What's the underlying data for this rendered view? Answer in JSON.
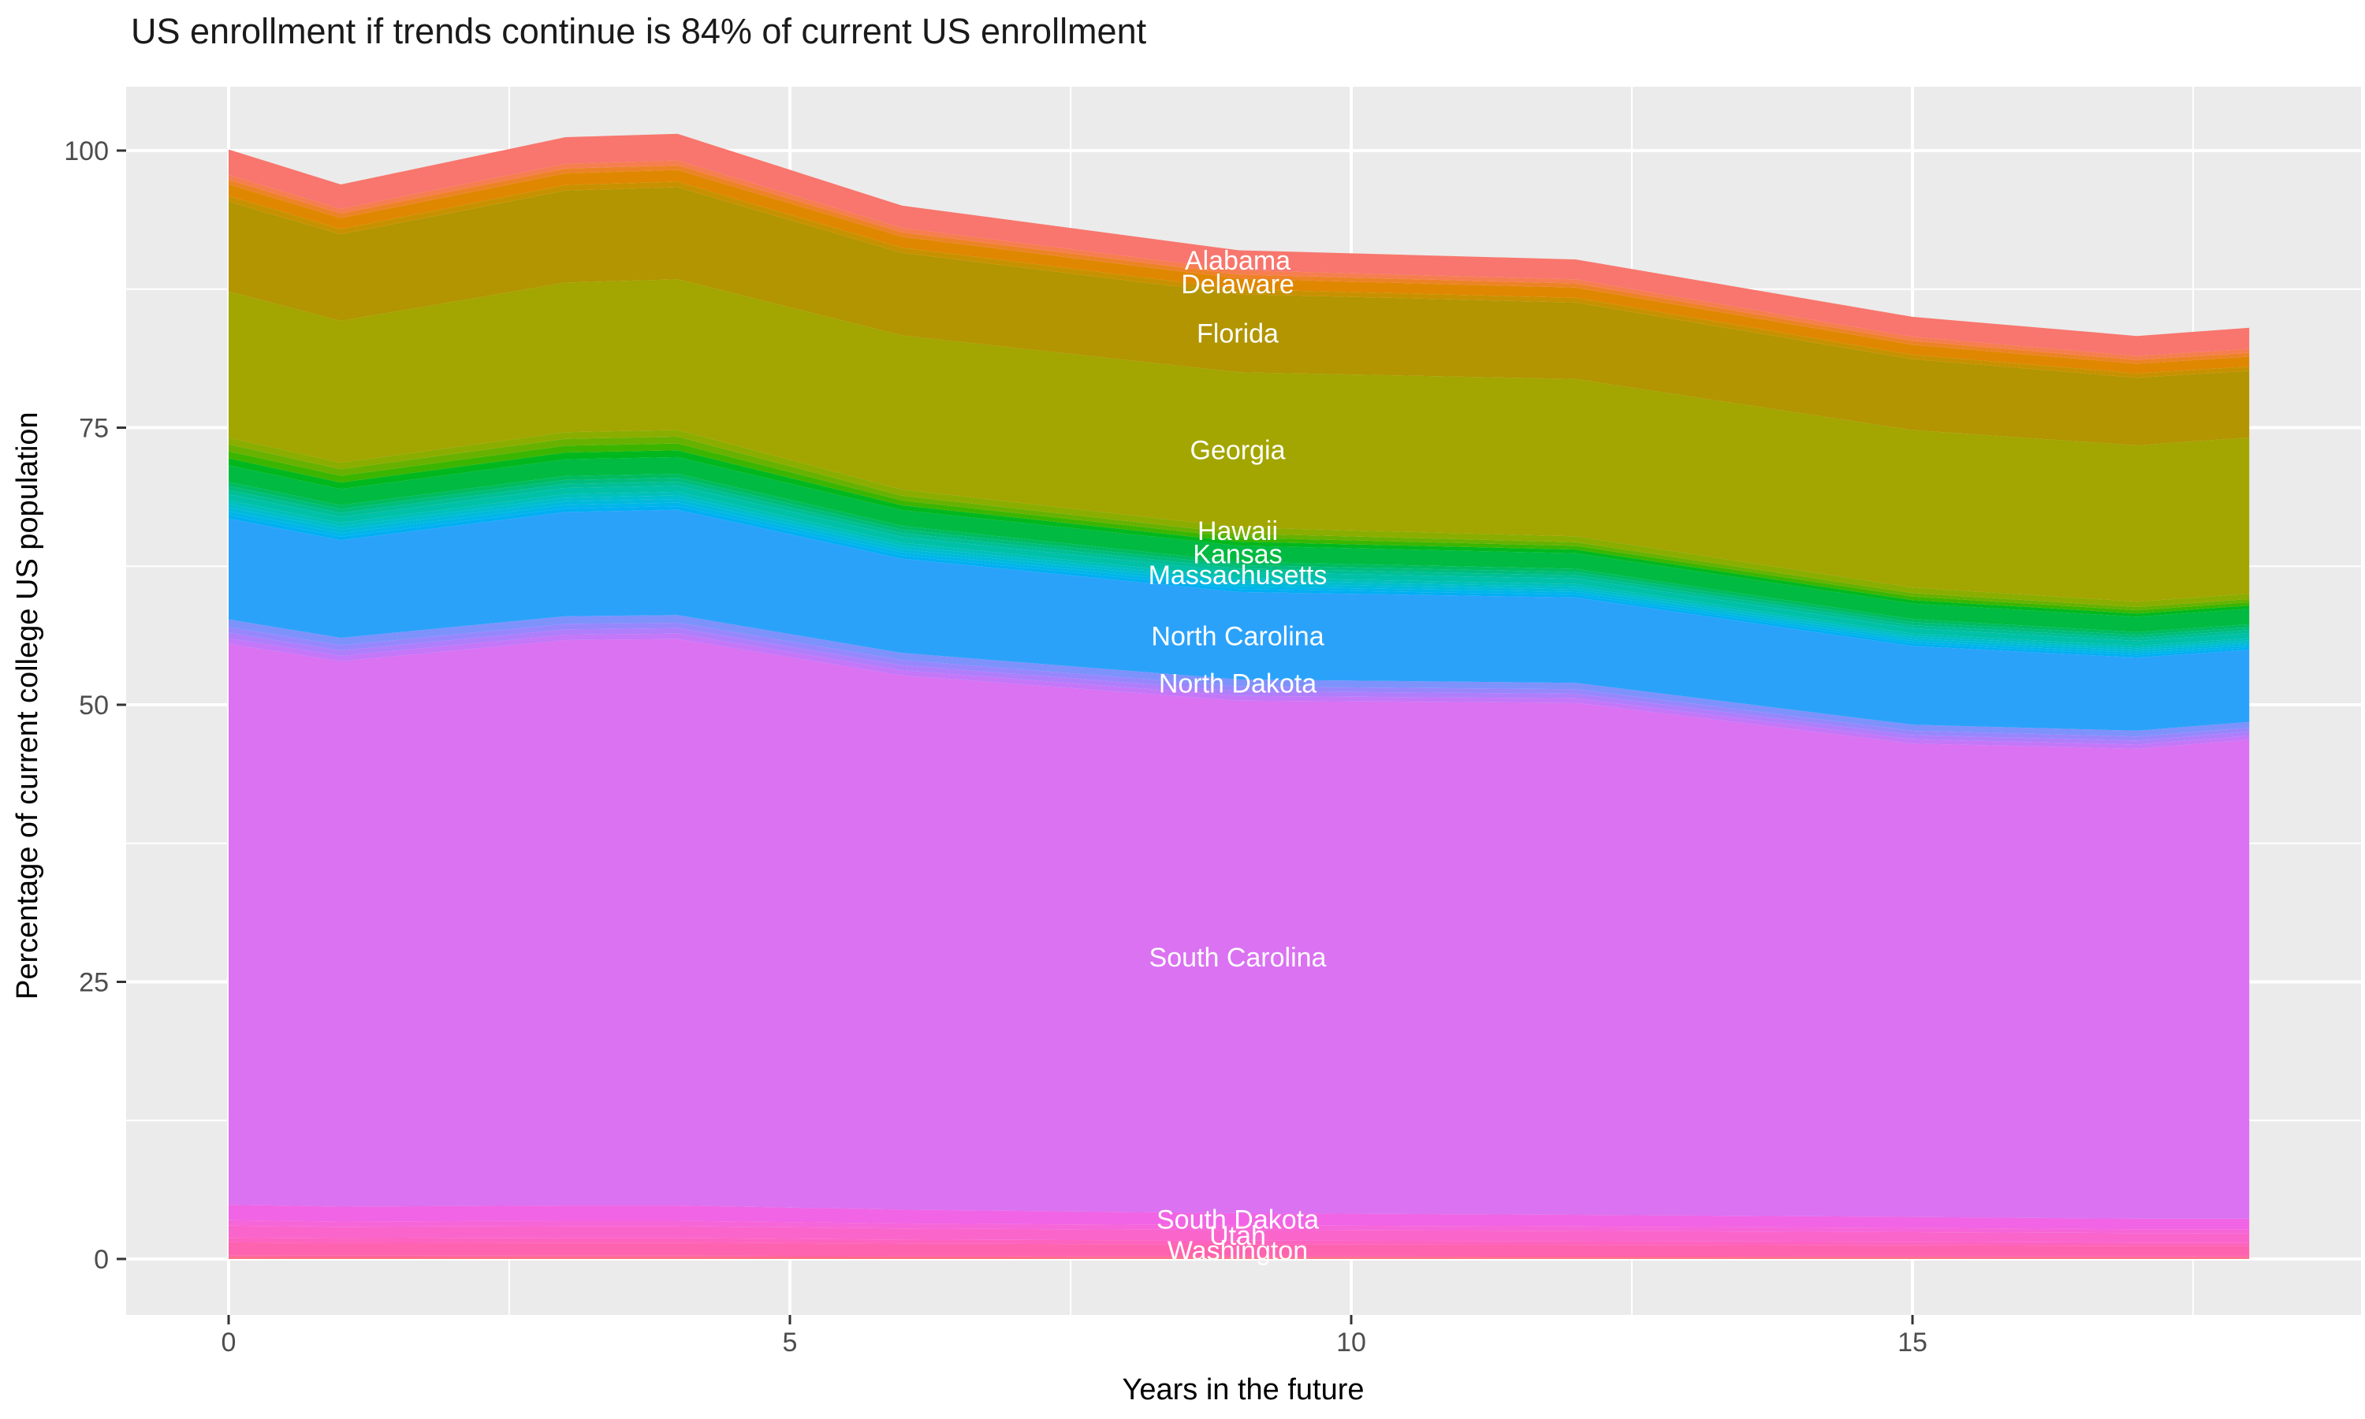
{
  "accent_colors": {
    "panel_background": "#EBEBEB",
    "gridline": "#FFFFFF",
    "tick_mark": "#333333",
    "tick_label": "#4D4D4D",
    "band_label_text": "#FFFFFF",
    "title_text": "#1A1A1A"
  },
  "chart_data": {
    "type": "area",
    "stacked": true,
    "title": "US enrollment if trends continue is 84% of current US enrollment",
    "xlabel": "Years in the future",
    "ylabel": "Percentage of current college US population",
    "xlim": [
      0,
      18
    ],
    "ylim": [
      0,
      100
    ],
    "grid": "on",
    "legend_position": "none",
    "x_ticks": [
      {
        "v": 0,
        "label": "0"
      },
      {
        "v": 5,
        "label": "5"
      },
      {
        "v": 10,
        "label": "10"
      },
      {
        "v": 15,
        "label": "15"
      }
    ],
    "y_ticks": [
      {
        "v": 0,
        "label": "0"
      },
      {
        "v": 25,
        "label": "25"
      },
      {
        "v": 50,
        "label": "50"
      },
      {
        "v": 75,
        "label": "75"
      },
      {
        "v": 100,
        "label": "100"
      }
    ],
    "x_minor_ticks": [
      2.5,
      7.5,
      12.5,
      17.5
    ],
    "y_minor_ticks": [
      12.5,
      37.5,
      62.5,
      87.5
    ],
    "x_samples": [
      0,
      1,
      3,
      4,
      6,
      9,
      12,
      15,
      17,
      18
    ],
    "total_percent_by_sample": [
      100.1,
      96.9,
      101.2,
      101.5,
      95.0,
      91.0,
      90.2,
      85.0,
      83.3,
      84.0
    ],
    "stack_order": "top-to-bottom",
    "series": [
      {
        "name": "Alabama",
        "labeled": true,
        "color": "#F8766D",
        "values": [
          2.3,
          2.2,
          2.4,
          2.4,
          2.0,
          1.8,
          1.8,
          1.8,
          1.8,
          1.9
        ]
      },
      {
        "name": "unlabeled-band-1",
        "labeled": false,
        "colors": [
          "#F67E50",
          "#ED8327"
        ],
        "values": [
          0.85,
          0.82,
          0.86,
          0.86,
          0.8,
          0.76,
          0.74,
          0.72,
          0.7,
          0.7
        ]
      },
      {
        "name": "Delaware",
        "labeled": true,
        "color": "#E08700",
        "values": [
          1.05,
          1.0,
          1.06,
          1.06,
          1.0,
          0.95,
          0.93,
          0.9,
          0.88,
          0.9
        ]
      },
      {
        "name": "unlabeled-band-2",
        "labeled": false,
        "colors": [
          "#C89100"
        ],
        "values": [
          0.5,
          0.48,
          0.5,
          0.5,
          0.46,
          0.44,
          0.42,
          0.4,
          0.39,
          0.39
        ]
      },
      {
        "name": "Florida",
        "labeled": true,
        "color": "#B29500",
        "values": [
          8.1,
          7.8,
          8.3,
          8.3,
          7.45,
          7.05,
          6.9,
          6.4,
          6.1,
          6.0
        ]
      },
      {
        "name": "Georgia",
        "labeled": true,
        "color": "#A3A500",
        "values": [
          13.2,
          12.8,
          13.5,
          13.6,
          13.9,
          14.0,
          14.2,
          14.2,
          14.1,
          14.1
        ]
      },
      {
        "name": "Hawaii",
        "labeled": true,
        "color": "#8BAD00",
        "values": [
          0.6,
          0.58,
          0.6,
          0.6,
          0.56,
          0.55,
          0.52,
          0.5,
          0.48,
          0.48
        ]
      },
      {
        "name": "unlabeled-band-3",
        "labeled": false,
        "colors": [
          "#68B100",
          "#3CB500",
          "#00B81E"
        ],
        "values": [
          1.9,
          1.8,
          1.85,
          1.85,
          1.3,
          1.1,
          1.0,
          0.95,
          0.88,
          0.88
        ]
      },
      {
        "name": "Kansas",
        "labeled": true,
        "color": "#00BA42",
        "values": [
          1.5,
          1.45,
          1.5,
          1.5,
          1.42,
          1.45,
          1.4,
          1.4,
          1.38,
          1.4
        ]
      },
      {
        "name": "unlabeled-band-4",
        "labeled": false,
        "colors": [
          "#00BC61",
          "#00BD7E",
          "#00BF96"
        ],
        "values": [
          1.1,
          1.06,
          1.08,
          1.08,
          1.0,
          0.92,
          0.88,
          0.84,
          0.8,
          0.8
        ]
      },
      {
        "name": "Massachusetts",
        "labeled": true,
        "color": "#00C0A8",
        "values": [
          0.55,
          0.53,
          0.55,
          0.55,
          0.52,
          0.5,
          0.49,
          0.47,
          0.45,
          0.45
        ]
      },
      {
        "name": "unlabeled-band-5",
        "labeled": false,
        "colors": [
          "#00C0BB",
          "#00BECC",
          "#00BADB",
          "#00B5E9",
          "#00AFF3"
        ],
        "values": [
          1.65,
          1.58,
          1.62,
          1.62,
          1.45,
          1.3,
          1.22,
          1.12,
          1.05,
          1.05
        ]
      },
      {
        "name": "North Carolina",
        "labeled": true,
        "color": "#2BA2FA",
        "values": [
          9.1,
          8.8,
          9.4,
          9.5,
          8.5,
          7.9,
          7.7,
          7.1,
          6.6,
          6.5
        ]
      },
      {
        "name": "North Dakota",
        "labeled": true,
        "color": "#7E92FC",
        "values": [
          0.7,
          0.67,
          0.69,
          0.69,
          0.64,
          0.62,
          0.58,
          0.55,
          0.52,
          0.52
        ]
      },
      {
        "name": "unlabeled-band-6",
        "labeled": false,
        "colors": [
          "#9787FD",
          "#AF7EFB",
          "#C477F8"
        ],
        "values": [
          1.5,
          1.44,
          1.47,
          1.47,
          1.38,
          1.28,
          1.22,
          1.15,
          1.1,
          1.1
        ]
      },
      {
        "name": "South Carolina",
        "labeled": true,
        "color": "#DA72F2",
        "values": [
          50.6,
          49.2,
          51.0,
          51.1,
          48.2,
          46.25,
          46.2,
          42.7,
          42.4,
          43.2
        ]
      },
      {
        "name": "South Dakota",
        "labeled": true,
        "color": "#F164E5",
        "values": [
          1.4,
          1.35,
          1.38,
          1.38,
          1.25,
          1.1,
          1.05,
          1.0,
          0.95,
          0.95
        ]
      },
      {
        "name": "unlabeled-band-7",
        "labeled": false,
        "colors": [
          "#F666D9"
        ],
        "values": [
          0.5,
          0.48,
          0.49,
          0.49,
          0.45,
          0.42,
          0.4,
          0.38,
          0.36,
          0.36
        ]
      },
      {
        "name": "Utah",
        "labeled": true,
        "color": "#FA65CC",
        "values": [
          1.1,
          1.06,
          1.08,
          1.08,
          1.0,
          0.95,
          0.92,
          0.88,
          0.85,
          0.85
        ]
      },
      {
        "name": "unlabeled-band-8",
        "labeled": false,
        "colors": [
          "#FD63BF"
        ],
        "values": [
          0.4,
          0.39,
          0.4,
          0.4,
          0.37,
          0.35,
          0.34,
          0.32,
          0.3,
          0.3
        ]
      },
      {
        "name": "Washington",
        "labeled": true,
        "color": "#FE63AF",
        "values": [
          1.2,
          1.16,
          1.18,
          1.18,
          1.1,
          1.05,
          1.02,
          0.98,
          0.95,
          0.95
        ]
      },
      {
        "name": "unlabeled-band-9",
        "labeled": false,
        "colors": [
          "#FF659B",
          "#FF6E7F"
        ],
        "values": [
          0.3,
          0.29,
          0.3,
          0.3,
          0.28,
          0.26,
          0.25,
          0.24,
          0.23,
          0.23
        ]
      }
    ]
  }
}
